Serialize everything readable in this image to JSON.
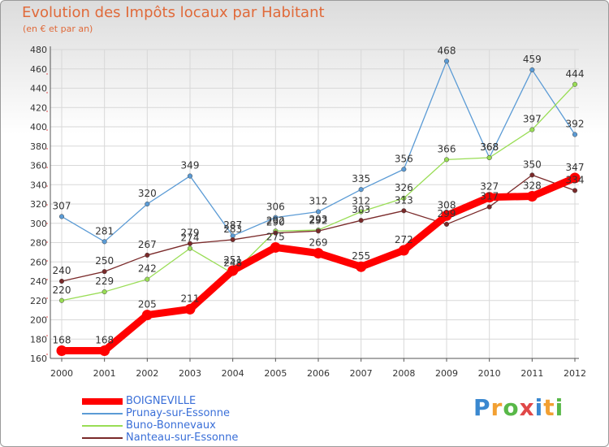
{
  "chart_data": {
    "type": "line",
    "title": "Evolution des Impôts locaux par Habitant",
    "subtitle": "(en € et par an)",
    "xlabel": "",
    "ylabel": "",
    "ylim": [
      160,
      480
    ],
    "yticks": [
      160,
      180,
      200,
      220,
      240,
      260,
      280,
      300,
      320,
      340,
      360,
      380,
      400,
      420,
      440,
      460,
      480
    ],
    "x": [
      "2000",
      "2001",
      "2002",
      "2003",
      "2004",
      "2005",
      "2006",
      "2007",
      "2008",
      "2009",
      "2010",
      "2011",
      "2012"
    ],
    "series": [
      {
        "name": "BOIGNEVILLE",
        "color": "#ff0000",
        "values": [
          168,
          168,
          205,
          211,
          251,
          275,
          269,
          255,
          272,
          308,
          327,
          328,
          347
        ]
      },
      {
        "name": "Prunay-sur-Essonne",
        "color": "#5b9bd5",
        "values": [
          307,
          281,
          320,
          349,
          287,
          306,
          312,
          335,
          356,
          468,
          368,
          459,
          392
        ]
      },
      {
        "name": "Buno-Bonnevaux",
        "color": "#99dd55",
        "values": [
          220,
          229,
          242,
          274,
          248,
          292,
          293,
          312,
          326,
          366,
          368,
          397,
          444
        ]
      },
      {
        "name": "Nanteau-sur-Essonne",
        "color": "#7a2a2a",
        "values": [
          240,
          250,
          267,
          279,
          283,
          290,
          292,
          303,
          313,
          299,
          317,
          350,
          334
        ]
      }
    ],
    "legend_position": "bottom-left",
    "grid": true
  },
  "logo_text": "Proxiti"
}
